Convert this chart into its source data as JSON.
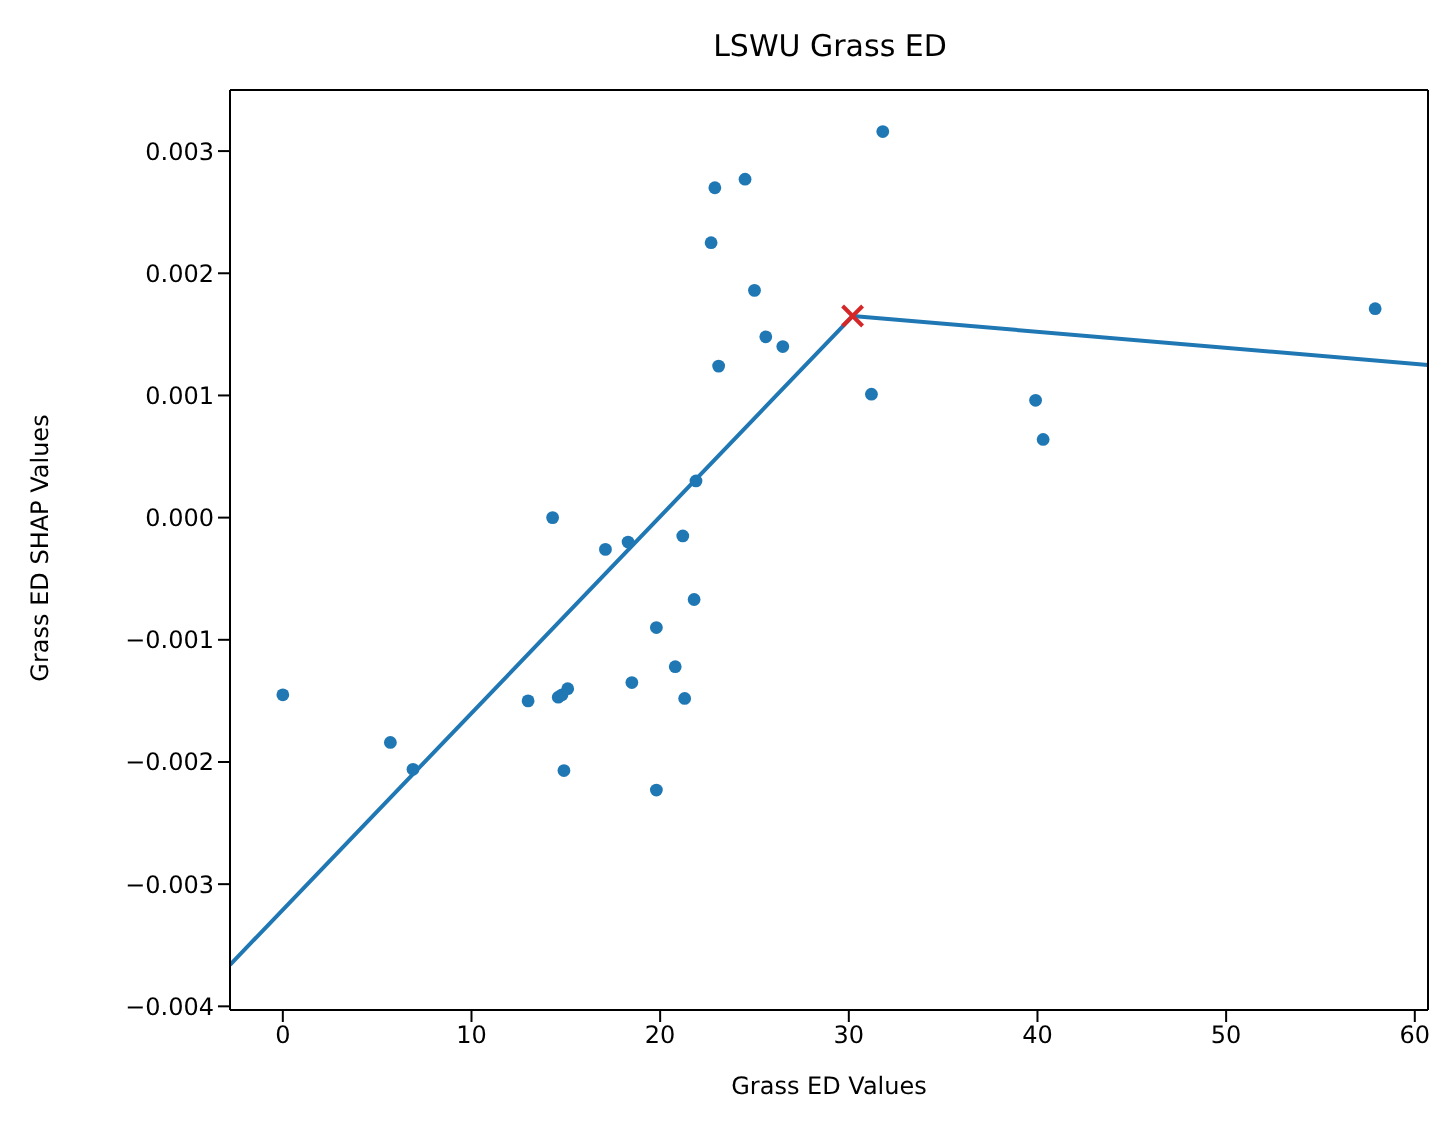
{
  "chart_data": {
    "type": "scatter",
    "title": "LSWU Grass ED",
    "xlabel": "Grass ED Values",
    "ylabel": "Grass ED SHAP Values",
    "xlim": [
      -2.8,
      60.7
    ],
    "xticks": [
      0,
      10,
      20,
      30,
      40,
      50,
      60
    ],
    "ylim": [
      -0.00403,
      0.0035
    ],
    "yticks": [
      {
        "value": -0.004,
        "label": "−0.004"
      },
      {
        "value": -0.003,
        "label": "−0.003"
      },
      {
        "value": -0.002,
        "label": "−0.002"
      },
      {
        "value": -0.001,
        "label": "−0.001"
      },
      {
        "value": 0,
        "label": "0.000"
      },
      {
        "value": 0.001,
        "label": "0.001"
      },
      {
        "value": 0.002,
        "label": "0.002"
      },
      {
        "value": 0.003,
        "label": "0.003"
      }
    ],
    "grid": false,
    "legend": false,
    "series": [
      {
        "type": "scatter",
        "marker": "circle",
        "color": "#1f77b4",
        "x": [
          0,
          5.7,
          6.9,
          13.0,
          14.3,
          14.6,
          14.8,
          15.1,
          14.9,
          17.1,
          18.3,
          18.5,
          19.8,
          19.8,
          20.8,
          21.2,
          21.3,
          21.8,
          21.9,
          22.7,
          22.9,
          23.1,
          24.5,
          25.0,
          25.6,
          26.5,
          31.8,
          31.2,
          39.9,
          40.3,
          57.9
        ],
        "values": [
          -0.00145,
          -0.00184,
          -0.00206,
          -0.0015,
          0.0,
          -0.00147,
          -0.00145,
          -0.0014,
          -0.00207,
          -0.00026,
          -0.0002,
          -0.00135,
          -0.0009,
          -0.00223,
          -0.00122,
          -0.00015,
          -0.00148,
          -0.00067,
          0.0003,
          0.00225,
          0.0027,
          0.00124,
          0.00277,
          0.00186,
          0.00148,
          0.0014,
          0.00316,
          0.00101,
          0.00096,
          0.00064,
          0.00171
        ]
      },
      {
        "type": "line",
        "marker": "none",
        "line_style": "solid",
        "color": "#1f77b4",
        "x": [
          -2.8,
          30.2,
          60.7
        ],
        "values": [
          -0.00366,
          0.00165,
          0.00125
        ]
      },
      {
        "type": "scatter",
        "marker": "cross",
        "color": "#d62728",
        "x": [
          30.2
        ],
        "values": [
          0.00165
        ]
      }
    ]
  }
}
